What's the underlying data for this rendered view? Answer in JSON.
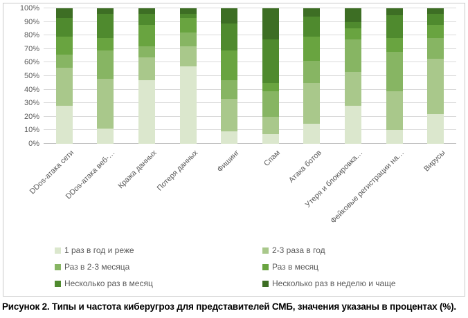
{
  "figure": {
    "caption": "Рисунок 2. Типы и частота киберугроз для представителей СМБ, значения указаны в процентах (%)."
  },
  "chart_data": {
    "type": "bar",
    "stacked": true,
    "stacked_mode": "percent",
    "title": "",
    "xlabel": "",
    "ylabel": "",
    "grid": true,
    "legend_position": "bottom",
    "legend_columns": 2,
    "ylim": [
      0,
      100
    ],
    "y_axis_ticks": [
      "0%",
      "10%",
      "20%",
      "30%",
      "40%",
      "50%",
      "60%",
      "70%",
      "80%",
      "90%",
      "100%"
    ],
    "categories": [
      "DDos-атака сети",
      "DDos-атака веб-…",
      "Кража данных",
      "Потеря данных",
      "Фишинг",
      "Спам",
      "Атака ботов",
      "Утеря и блокировка…",
      "Фейковые регистрации на…",
      "Вирусы"
    ],
    "series": [
      {
        "name": "1 раз в год и реже",
        "color": "#dbe7cd",
        "values": [
          28,
          11,
          47,
          57,
          9,
          7,
          15,
          28,
          10,
          22
        ]
      },
      {
        "name": "2-3 раза в год",
        "color": "#a9c88b",
        "values": [
          28,
          37,
          17,
          15,
          24,
          13,
          30,
          25,
          29,
          41
        ]
      },
      {
        "name": "Раз в 2-3 месяца",
        "color": "#87b563",
        "values": [
          10,
          21,
          8,
          10,
          14,
          19,
          16,
          24,
          29,
          15
        ]
      },
      {
        "name": "Раз в месяц",
        "color": "#69a440",
        "values": [
          13,
          9,
          16,
          11,
          22,
          6,
          18,
          8,
          10,
          10
        ]
      },
      {
        "name": "Несколько раз в месяц",
        "color": "#4f8a2e",
        "values": [
          14,
          18,
          8,
          3,
          20,
          32,
          15,
          5,
          17,
          8
        ]
      },
      {
        "name": "Несколько раз в неделю и чаще",
        "color": "#3d6e24",
        "values": [
          7,
          4,
          4,
          4,
          11,
          23,
          6,
          10,
          5,
          4
        ]
      }
    ]
  }
}
